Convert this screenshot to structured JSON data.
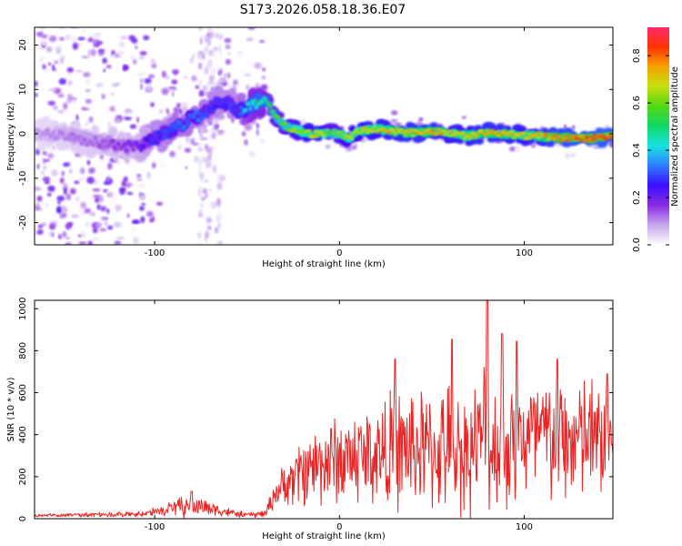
{
  "figure_title": "S173.2026.058.18.36.E07",
  "colors": {
    "snr_line": "#ee2222",
    "axis": "#000000",
    "colormap": [
      "#ffffff",
      "#c7a6ee",
      "#8a2be2",
      "#3a0cff",
      "#2f7cff",
      "#18e2e2",
      "#10d868",
      "#52d812",
      "#c6e010",
      "#f5a300",
      "#ff3300",
      "#ff2a6a"
    ]
  },
  "chart_data": [
    {
      "type": "heatmap",
      "title": "",
      "xlabel": "Height of straight line (km)",
      "ylabel": "Frequency (Hz)",
      "xlim": [
        -165,
        148
      ],
      "ylim": [
        -25,
        24
      ],
      "xticks": [
        -100,
        0,
        100
      ],
      "yticks": [
        -20,
        -10,
        0,
        10,
        20
      ],
      "xtick_labels": [
        "-100",
        "0",
        "100"
      ],
      "ytick_labels": [
        "-20",
        "-10",
        "0",
        "10",
        "20"
      ],
      "colorbar": {
        "label": "Normalized spectral amplitude",
        "range": [
          0.0,
          0.92
        ],
        "ticks": [
          0.0,
          0.2,
          0.4,
          0.6,
          0.8
        ],
        "tick_labels": [
          "0.0",
          "0.2",
          "0.4",
          "0.6",
          "0.8"
        ]
      },
      "ridge": {
        "x": [
          -165,
          -150,
          -130,
          -110,
          -100,
          -95,
          -90,
          -85,
          -80,
          -75,
          -70,
          -65,
          -60,
          -55,
          -50,
          -45,
          -40,
          -35,
          -30,
          -25,
          -20,
          -15,
          -10,
          -5,
          0,
          5,
          10,
          15,
          20,
          30,
          40,
          50,
          60,
          70,
          80,
          90,
          100,
          110,
          120,
          130,
          140,
          148
        ],
        "freq": [
          0,
          0,
          -2,
          -3,
          -1,
          0,
          1,
          2,
          4,
          4,
          6,
          7,
          7,
          5,
          6,
          7,
          8,
          4,
          2,
          1,
          0.5,
          0,
          0,
          0.3,
          0,
          -1,
          0.5,
          0.8,
          1,
          0.5,
          0.3,
          0.5,
          0,
          -0.5,
          0.3,
          0,
          -0.5,
          -0.5,
          -1,
          -1,
          -1,
          -0.5
        ],
        "amplitude": [
          0.1,
          0.12,
          0.15,
          0.2,
          0.3,
          0.3,
          0.35,
          0.35,
          0.35,
          0.35,
          0.3,
          0.3,
          0.3,
          0.3,
          0.45,
          0.5,
          0.5,
          0.6,
          0.62,
          0.65,
          0.7,
          0.75,
          0.75,
          0.6,
          0.65,
          0.7,
          0.72,
          0.75,
          0.75,
          0.78,
          0.78,
          0.8,
          0.75,
          0.75,
          0.8,
          0.78,
          0.75,
          0.78,
          0.85,
          0.88,
          0.9,
          0.88
        ]
      }
    },
    {
      "type": "line",
      "title": "",
      "xlabel": "Height of straight line (km)",
      "ylabel": "SNR (10 * v/v)",
      "xlim": [
        -165,
        148
      ],
      "ylim": [
        0,
        1040
      ],
      "xticks": [
        -100,
        0,
        100
      ],
      "yticks": [
        0,
        200,
        400,
        600,
        800,
        1000
      ],
      "xtick_labels": [
        "-100",
        "0",
        "100"
      ],
      "ytick_labels": [
        "0",
        "200",
        "400",
        "600",
        "800",
        "1000"
      ],
      "series": [
        {
          "name": "SNR",
          "color": "#ee2222",
          "envelope": {
            "x": [
              -165,
              -140,
              -120,
              -110,
              -100,
              -95,
              -90,
              -85,
              -80,
              -75,
              -70,
              -65,
              -60,
              -55,
              -50,
              -45,
              -40,
              -35,
              -30,
              -25,
              -20,
              -15,
              -10,
              -5,
              0,
              5,
              10,
              15,
              20,
              25,
              30,
              35,
              40,
              45,
              50,
              55,
              60,
              62,
              65,
              70,
              75,
              78,
              80,
              82,
              85,
              90,
              95,
              100,
              105,
              110,
              115,
              120,
              125,
              130,
              135,
              140,
              145,
              148
            ],
            "base": [
              15,
              18,
              20,
              22,
              30,
              40,
              50,
              55,
              60,
              60,
              50,
              40,
              30,
              22,
              18,
              20,
              25,
              120,
              160,
              190,
              230,
              250,
              270,
              280,
              280,
              290,
              300,
              300,
              310,
              320,
              330,
              330,
              340,
              330,
              320,
              330,
              340,
              330,
              320,
              330,
              360,
              400,
              380,
              340,
              360,
              360,
              370,
              380,
              380,
              390,
              380,
              370,
              370,
              380,
              380,
              370,
              380,
              390
            ],
            "amp": [
              10,
              12,
              14,
              16,
              25,
              40,
              55,
              60,
              60,
              55,
              45,
              35,
              25,
              18,
              15,
              18,
              25,
              80,
              110,
              160,
              200,
              220,
              240,
              250,
              260,
              270,
              280,
              290,
              300,
              310,
              330,
              340,
              350,
              350,
              330,
              340,
              360,
              380,
              350,
              340,
              350,
              420,
              380,
              340,
              360,
              380,
              390,
              380,
              380,
              390,
              380,
              360,
              360,
              370,
              370,
              340,
              350,
              320
            ]
          },
          "peaks": [
            {
              "x": 80,
              "y": 1040
            },
            {
              "x": 61,
              "y": 855
            },
            {
              "x": 30,
              "y": 760
            },
            {
              "x": 88,
              "y": 880
            },
            {
              "x": 96,
              "y": 845
            },
            {
              "x": 118,
              "y": 760
            },
            {
              "x": 145,
              "y": 690
            },
            {
              "x": -80,
              "y": 130
            }
          ]
        }
      ]
    }
  ]
}
